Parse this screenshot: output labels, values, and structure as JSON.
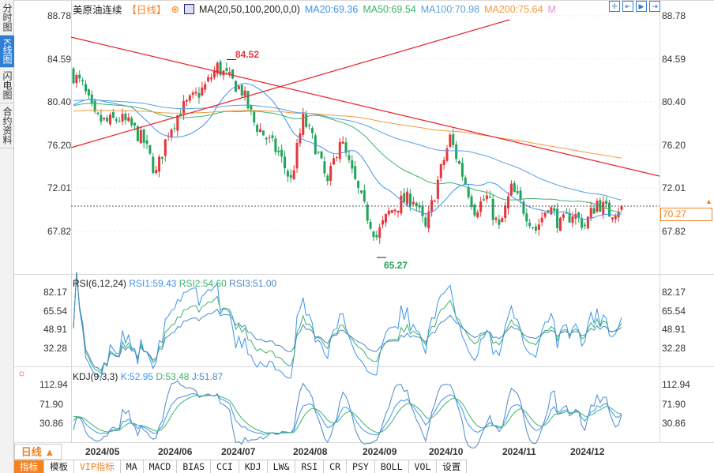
{
  "sidebar": {
    "tabs": [
      {
        "label": "分时图"
      },
      {
        "label": "K线图",
        "active": true
      },
      {
        "label": "闪电图"
      },
      {
        "label": "合约资料"
      }
    ]
  },
  "header": {
    "name": "美原油连续",
    "period": "【日线】",
    "ma_label": "MA(20,50,100,200,0,0)",
    "ma20": "MA20:69.36",
    "ma50": "MA50:69.54",
    "ma100": "MA100:70.98",
    "ma200": "MA200:75.64",
    "more": "M"
  },
  "colors": {
    "up": "#e8343a",
    "down": "#1fa45b",
    "ma20": "#3d93ef",
    "ma50": "#3cb36b",
    "ma100": "#5aa0e0",
    "ma200": "#f39a3c",
    "trend": "#e8202a",
    "rsi1": "#3d93ef",
    "rsi2": "#3cb36b",
    "rsi3": "#4a88c8"
  },
  "price_axis": [
    "88.78",
    "84.59",
    "80.40",
    "76.20",
    "72.01",
    "67.82"
  ],
  "last_price": "70.27",
  "high_marker": "84.52",
  "low_marker": "65.27",
  "rsi": {
    "title": "RSI(6,12,24)",
    "rsi1": "RSI1:59.43",
    "rsi2": "RSI2:54.60",
    "rsi3": "RSI3:51.00",
    "axis": [
      "82.17",
      "65.54",
      "48.91",
      "32.28"
    ]
  },
  "kdj": {
    "title": "KDJ(9,3,3)",
    "k": "K:52.95",
    "d": "D:53.48",
    "j": "J:51.87",
    "axis": [
      "112.94",
      "71.90",
      "30.86"
    ]
  },
  "x_axis": [
    "2024/05",
    "2024/06",
    "2024/07",
    "2024/08",
    "2024/09",
    "2024/10",
    "2024/11",
    "2024/12"
  ],
  "period_button": "日线 ▲",
  "bottom_tabs": [
    "指标",
    "模板",
    "VIP指标",
    "MA",
    "MACD",
    "BIAS",
    "CCI",
    "KDJ",
    "LW&",
    "RSI",
    "CR",
    "PSY",
    "BOLL",
    "VOL",
    "设置"
  ],
  "chart_data": {
    "type": "candlestick",
    "symbol": "美原油连续",
    "frequency": "daily, weekly anchor closes",
    "weekly_closes": [
      83.4,
      81.9,
      78.8,
      78.4,
      78.8,
      78.0,
      76.5,
      73.4,
      77.6,
      79.6,
      80.7,
      81.9,
      83.8,
      82.6,
      81.5,
      78.4,
      76.9,
      75.4,
      72.7,
      78.8,
      76.1,
      72.3,
      76.9,
      73.4,
      70.0,
      67.3,
      69.6,
      70.7,
      71.1,
      68.0,
      72.7,
      76.9,
      73.4,
      70.0,
      71.1,
      68.0,
      71.9,
      70.0,
      68.0,
      70.4,
      68.4,
      69.6,
      68.4,
      70.7,
      69.6,
      70.27
    ],
    "ylim": [
      63.5,
      88.78
    ],
    "high": 84.52,
    "low": 65.27
  }
}
